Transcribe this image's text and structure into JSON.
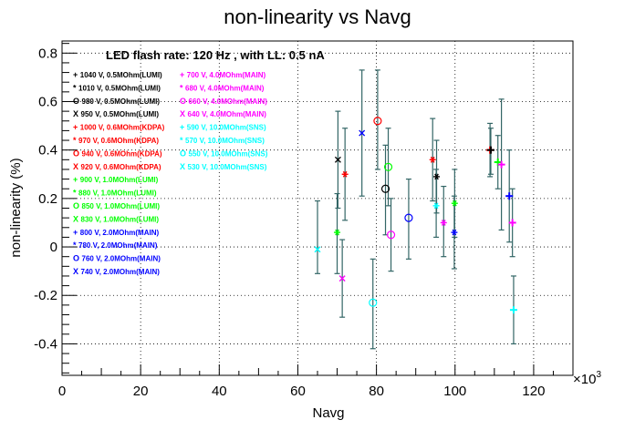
{
  "chart_data": {
    "type": "scatter",
    "title": "non-linearity vs Navg",
    "xlabel": "Navg",
    "ylabel": "non-linearity (%)",
    "x_exponent_label": "×10",
    "x_exponent_power": "3",
    "annotation": "LED flash rate: 120 Hz , with LL: 0.5 nA",
    "xlim": [
      0,
      130
    ],
    "ylim": [
      -0.53,
      0.85
    ],
    "x_ticks": [
      "0",
      "20",
      "40",
      "60",
      "80",
      "100",
      "120"
    ],
    "y_ticks": [
      "-0.4",
      "-0.2",
      "0",
      "0.2",
      "0.4",
      "0.6",
      "0.8"
    ],
    "grid": true,
    "legend_position": "top-left",
    "colors": {
      "black": "#000000",
      "red": "#ff0000",
      "green": "#00ff00",
      "blue": "#0000ff",
      "magenta": "#ff00ff",
      "cyan": "#00ffff",
      "errorbar": "#336666"
    },
    "legend_left": [
      {
        "marker": "+",
        "label": "1040 V, 0.5MOhm(LUMI)",
        "color": "black"
      },
      {
        "marker": "*",
        "label": "1010 V, 0.5MOhm(LUMI)",
        "color": "black"
      },
      {
        "marker": "O",
        "label": "980 V, 0.5MOhm(LUMI)",
        "color": "black"
      },
      {
        "marker": "X",
        "label": "950 V, 0.5MOhm(LUMI)",
        "color": "black"
      },
      {
        "marker": "+",
        "label": "1000 V, 0.6MOhm(KDPA)",
        "color": "red"
      },
      {
        "marker": "*",
        "label": "970 V, 0.6MOhm(KDPA)",
        "color": "red"
      },
      {
        "marker": "O",
        "label": "940 V, 0.6MOhm(KDPA)",
        "color": "red"
      },
      {
        "marker": "X",
        "label": "920 V, 0.6MOhm(KDPA)",
        "color": "red"
      },
      {
        "marker": "+",
        "label": "900 V, 1.0MOhm(LUMI)",
        "color": "green"
      },
      {
        "marker": "*",
        "label": "880 V, 1.0MOhm(LUMI)",
        "color": "green"
      },
      {
        "marker": "O",
        "label": "850 V, 1.0MOhm(LUMI)",
        "color": "green"
      },
      {
        "marker": "X",
        "label": "830 V, 1.0MOhm(LUMI)",
        "color": "green"
      },
      {
        "marker": "+",
        "label": "800 V, 2.0MOhm(MAIN)",
        "color": "blue"
      },
      {
        "marker": "*",
        "label": "780 V, 2.0MOhm(MAIN)",
        "color": "blue"
      },
      {
        "marker": "O",
        "label": "760 V, 2.0MOhm(MAIN)",
        "color": "blue"
      },
      {
        "marker": "X",
        "label": "740 V, 2.0MOhm(MAIN)",
        "color": "blue"
      }
    ],
    "legend_right": [
      {
        "marker": "+",
        "label": "700 V, 4.0MOhm(MAIN)",
        "color": "magenta"
      },
      {
        "marker": "*",
        "label": "680 V, 4.0MOhm(MAIN)",
        "color": "magenta"
      },
      {
        "marker": "O",
        "label": "660 V, 4.0MOhm(MAIN)",
        "color": "magenta"
      },
      {
        "marker": "X",
        "label": "640 V, 4.0MOhm(MAIN)",
        "color": "magenta"
      },
      {
        "marker": "+",
        "label": "590 V, 10.0MOhm(SNS)",
        "color": "cyan"
      },
      {
        "marker": "*",
        "label": "570 V, 10.0MOhm(SNS)",
        "color": "cyan"
      },
      {
        "marker": "O",
        "label": "550 V, 10.0MOhm(SNS)",
        "color": "cyan"
      },
      {
        "marker": "X",
        "label": "530 V, 10.0MOhm(SNS)",
        "color": "cyan"
      }
    ],
    "points": [
      {
        "x": 65.0,
        "y": -0.01,
        "lo": -0.11,
        "hi": 0.19,
        "marker": "X",
        "color": "cyan"
      },
      {
        "x": 70.0,
        "y": 0.06,
        "lo": -0.11,
        "hi": 0.22,
        "marker": "*",
        "color": "green"
      },
      {
        "x": 70.2,
        "y": 0.36,
        "lo": 0.16,
        "hi": 0.56,
        "marker": "X",
        "color": "black"
      },
      {
        "x": 71.3,
        "y": -0.13,
        "lo": -0.29,
        "hi": 0.03,
        "marker": "X",
        "color": "magenta"
      },
      {
        "x": 72.0,
        "y": 0.3,
        "lo": 0.11,
        "hi": 0.49,
        "marker": "*",
        "color": "red"
      },
      {
        "x": 76.3,
        "y": 0.47,
        "lo": 0.21,
        "hi": 0.73,
        "marker": "X",
        "color": "blue"
      },
      {
        "x": 79.1,
        "y": -0.23,
        "lo": -0.42,
        "hi": -0.05,
        "marker": "O",
        "color": "cyan"
      },
      {
        "x": 80.3,
        "y": 0.52,
        "lo": 0.32,
        "hi": 0.73,
        "marker": "O",
        "color": "red"
      },
      {
        "x": 82.3,
        "y": 0.24,
        "lo": 0.05,
        "hi": 0.42,
        "marker": "O",
        "color": "black"
      },
      {
        "x": 83.0,
        "y": 0.33,
        "lo": 0.17,
        "hi": 0.49,
        "marker": "O",
        "color": "green"
      },
      {
        "x": 83.7,
        "y": 0.05,
        "lo": -0.1,
        "hi": 0.2,
        "marker": "O",
        "color": "magenta"
      },
      {
        "x": 88.2,
        "y": 0.12,
        "lo": -0.05,
        "hi": 0.28,
        "marker": "O",
        "color": "blue"
      },
      {
        "x": 94.3,
        "y": 0.36,
        "lo": 0.19,
        "hi": 0.53,
        "marker": "*",
        "color": "red"
      },
      {
        "x": 95.2,
        "y": 0.17,
        "lo": 0.04,
        "hi": 0.32,
        "marker": "*",
        "color": "cyan"
      },
      {
        "x": 95.3,
        "y": 0.29,
        "lo": 0.14,
        "hi": 0.44,
        "marker": "*",
        "color": "black"
      },
      {
        "x": 97.1,
        "y": 0.1,
        "lo": -0.04,
        "hi": 0.25,
        "marker": "*",
        "color": "magenta"
      },
      {
        "x": 99.8,
        "y": 0.06,
        "lo": -0.09,
        "hi": 0.21,
        "marker": "*",
        "color": "blue"
      },
      {
        "x": 99.9,
        "y": 0.18,
        "lo": 0.04,
        "hi": 0.32,
        "marker": "*",
        "color": "green"
      },
      {
        "x": 108.9,
        "y": 0.4,
        "lo": 0.29,
        "hi": 0.51,
        "marker": "+",
        "color": "red"
      },
      {
        "x": 109.1,
        "y": 0.4,
        "lo": 0.3,
        "hi": 0.49,
        "marker": "+",
        "color": "black"
      },
      {
        "x": 110.9,
        "y": 0.35,
        "lo": 0.24,
        "hi": 0.46,
        "marker": "+",
        "color": "green"
      },
      {
        "x": 111.8,
        "y": 0.34,
        "lo": 0.07,
        "hi": 0.61,
        "marker": "+",
        "color": "magenta"
      },
      {
        "x": 113.8,
        "y": 0.21,
        "lo": 0.02,
        "hi": 0.4,
        "marker": "+",
        "color": "blue"
      },
      {
        "x": 114.6,
        "y": 0.1,
        "lo": -0.04,
        "hi": 0.24,
        "marker": "+",
        "color": "magenta"
      },
      {
        "x": 114.9,
        "y": -0.26,
        "lo": -0.4,
        "hi": -0.12,
        "marker": "+",
        "color": "cyan"
      }
    ]
  }
}
